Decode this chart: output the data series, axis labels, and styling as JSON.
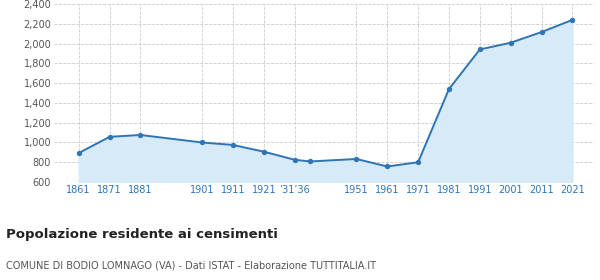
{
  "years": [
    1861,
    1871,
    1881,
    1901,
    1911,
    1921,
    1931,
    1936,
    1951,
    1961,
    1971,
    1981,
    1991,
    2001,
    2011,
    2021
  ],
  "population": [
    893,
    1057,
    1076,
    1000,
    975,
    907,
    825,
    808,
    833,
    757,
    800,
    1541,
    1942,
    2010,
    2118,
    2241
  ],
  "ylim": [
    600,
    2400
  ],
  "yticks": [
    600,
    800,
    1000,
    1200,
    1400,
    1600,
    1800,
    2000,
    2200,
    2400
  ],
  "line_color": "#2e75b6",
  "fill_color": "#d6eaf8",
  "marker_color": "#2e75b6",
  "grid_color": "#cccccc",
  "bg_color": "#ffffff",
  "title": "Popolazione residente ai censimenti",
  "subtitle": "COMUNE DI BODIO LOMNAGO (VA) - Dati ISTAT - Elaborazione TUTTITALIA.IT",
  "title_fontsize": 9.5,
  "subtitle_fontsize": 7,
  "tick_color": "#2e75b6",
  "ytick_color": "#555555",
  "tick_fontsize": 7,
  "xlim_left": 1853,
  "xlim_right": 2028,
  "x_tick_positions": [
    1861,
    1871,
    1881,
    1901,
    1911,
    1921,
    1931,
    1951,
    1961,
    1971,
    1981,
    1991,
    2001,
    2011,
    2021
  ],
  "x_tick_labels": [
    "1861",
    "1871",
    "1881",
    "1901",
    "1911",
    "1921",
    "’31’36",
    "1951",
    "1961",
    "1971",
    "1981",
    "1991",
    "2001",
    "2011",
    "2021"
  ]
}
